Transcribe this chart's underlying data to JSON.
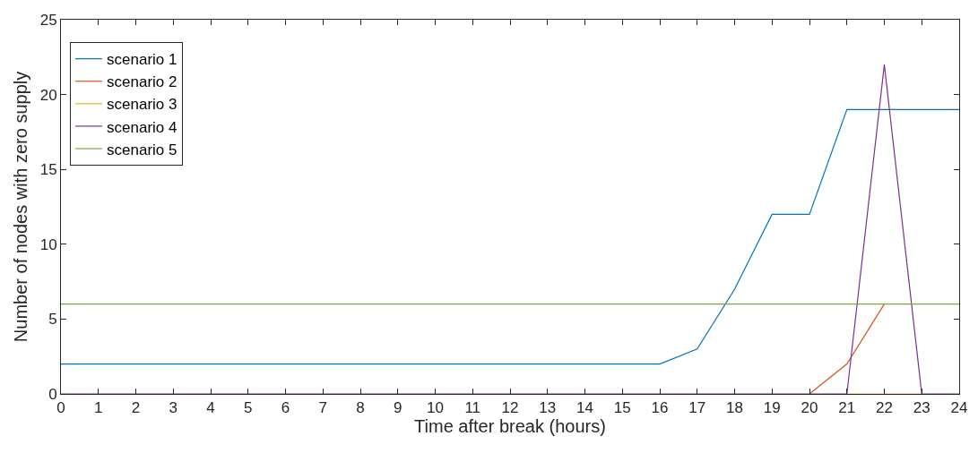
{
  "chart_data": {
    "type": "line",
    "xlabel": "Time after break (hours)",
    "ylabel": "Number of nodes with zero supply",
    "x": [
      0,
      1,
      2,
      3,
      4,
      5,
      6,
      7,
      8,
      9,
      10,
      11,
      12,
      13,
      14,
      15,
      16,
      17,
      18,
      19,
      20,
      21,
      22,
      23,
      24
    ],
    "series": [
      {
        "name": "scenario 1",
        "color": "#0072bd",
        "values": [
          2,
          2,
          2,
          2,
          2,
          2,
          2,
          2,
          2,
          2,
          2,
          2,
          2,
          2,
          2,
          2,
          2,
          3,
          7,
          12,
          12,
          19,
          19,
          19,
          19
        ]
      },
      {
        "name": "scenario 2",
        "color": "#d95319",
        "values": [
          null,
          null,
          null,
          null,
          null,
          null,
          null,
          null,
          null,
          null,
          null,
          null,
          null,
          null,
          null,
          null,
          null,
          null,
          null,
          null,
          0,
          2,
          6,
          null,
          null
        ]
      },
      {
        "name": "scenario 3",
        "color": "#edb120",
        "values": [
          null,
          null,
          null,
          null,
          null,
          null,
          null,
          null,
          null,
          null,
          null,
          null,
          null,
          null,
          null,
          null,
          null,
          null,
          null,
          null,
          null,
          0,
          0,
          0,
          null
        ]
      },
      {
        "name": "scenario 4",
        "color": "#7e2f8e",
        "values": [
          0,
          0,
          0,
          0,
          0,
          0,
          0,
          0,
          0,
          0,
          0,
          0,
          0,
          0,
          0,
          0,
          0,
          0,
          0,
          0,
          0,
          0,
          22,
          0,
          0
        ]
      },
      {
        "name": "scenario 5",
        "color": "#77ac30",
        "values": [
          6,
          6,
          6,
          6,
          6,
          6,
          6,
          6,
          6,
          6,
          6,
          6,
          6,
          6,
          6,
          6,
          6,
          6,
          6,
          6,
          6,
          6,
          6,
          6,
          6
        ]
      }
    ],
    "xlim": [
      0,
      24
    ],
    "xticks": [
      0,
      1,
      2,
      3,
      4,
      5,
      6,
      7,
      8,
      9,
      10,
      11,
      12,
      13,
      14,
      15,
      16,
      17,
      18,
      19,
      20,
      21,
      22,
      23,
      24
    ],
    "ylim": [
      0,
      25
    ],
    "yticks": [
      0,
      5,
      10,
      15,
      20,
      25
    ],
    "legend": "top left",
    "marker": "none",
    "line_style": "solid"
  }
}
